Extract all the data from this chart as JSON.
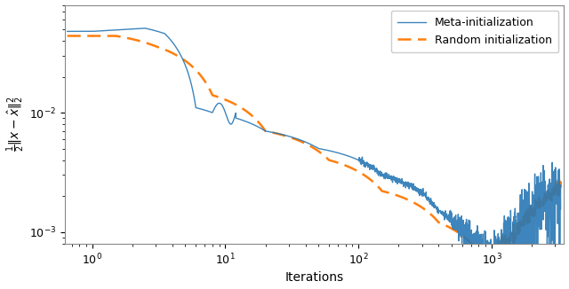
{
  "title": "",
  "xlabel": "Iterations",
  "ylabel": "$\\frac{1}{2}\\|x - \\hat{x}\\|_2^2$",
  "xlim_log": [
    0.62,
    3500
  ],
  "ylim_log": [
    0.0008,
    0.08
  ],
  "meta_color": "#2878b5",
  "random_color": "#ff7f0e",
  "legend_labels": [
    "Meta-initialization",
    "Random initialization"
  ],
  "figsize": [
    6.4,
    3.26
  ],
  "dpi": 100
}
